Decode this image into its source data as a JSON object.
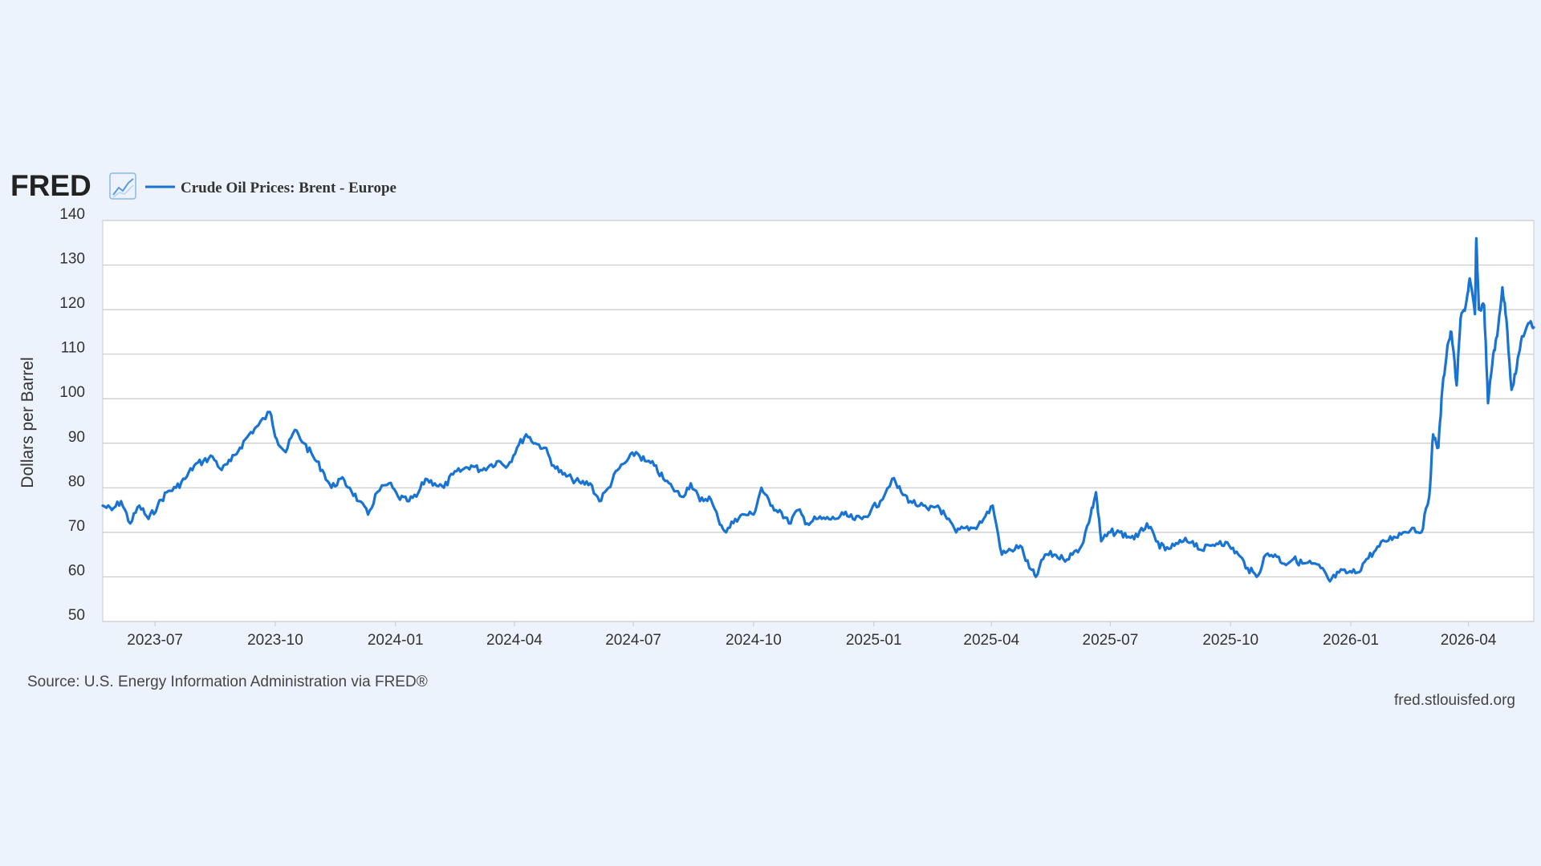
{
  "header": {
    "logo": "FRED",
    "logo_icon": "line-chart-icon"
  },
  "footer": {
    "source": "Source: U.S. Energy Information Administration via FRED®",
    "site": "fred.stlouisfed.org"
  },
  "colors": {
    "background": "#edf3fc",
    "plot_background": "#ffffff",
    "series": "#1873d3",
    "grid": "#c9c9c9",
    "text": "#333333"
  },
  "chart_data": {
    "type": "line",
    "ylabel": "Dollars per Barrel",
    "xlabel": "",
    "ylim": [
      50,
      140
    ],
    "yticks": [
      140,
      130,
      120,
      110,
      100,
      90,
      80,
      70,
      60,
      50
    ],
    "xlim": [
      "2023-05-22",
      "2026-05-21"
    ],
    "xticks": [
      "2023-07",
      "2023-10",
      "2024-01",
      "2024-04",
      "2024-07",
      "2024-10",
      "2025-01",
      "2025-04",
      "2025-07",
      "2025-10",
      "2026-01",
      "2026-04"
    ],
    "grid": true,
    "legend_position": "top-left",
    "series": [
      {
        "name": "Crude Oil Prices: Brent - Europe",
        "color": "#1873d3",
        "points": [
          [
            "2023-05-22",
            76
          ],
          [
            "2023-05-29",
            75
          ],
          [
            "2023-06-05",
            77
          ],
          [
            "2023-06-12",
            72
          ],
          [
            "2023-06-19",
            76
          ],
          [
            "2023-06-26",
            73
          ],
          [
            "2023-07-03",
            76
          ],
          [
            "2023-07-10",
            79
          ],
          [
            "2023-07-17",
            80
          ],
          [
            "2023-07-24",
            82
          ],
          [
            "2023-07-31",
            85
          ],
          [
            "2023-08-07",
            86
          ],
          [
            "2023-08-14",
            87
          ],
          [
            "2023-08-21",
            84
          ],
          [
            "2023-08-28",
            86
          ],
          [
            "2023-09-04",
            89
          ],
          [
            "2023-09-11",
            92
          ],
          [
            "2023-09-18",
            94
          ],
          [
            "2023-09-27",
            97
          ],
          [
            "2023-10-02",
            91
          ],
          [
            "2023-10-09",
            88
          ],
          [
            "2023-10-16",
            93
          ],
          [
            "2023-10-23",
            90
          ],
          [
            "2023-10-30",
            87
          ],
          [
            "2023-11-06",
            84
          ],
          [
            "2023-11-13",
            80
          ],
          [
            "2023-11-20",
            82
          ],
          [
            "2023-11-27",
            80
          ],
          [
            "2023-12-04",
            77
          ],
          [
            "2023-12-11",
            74
          ],
          [
            "2023-12-18",
            79
          ],
          [
            "2023-12-27",
            81
          ],
          [
            "2024-01-03",
            78
          ],
          [
            "2024-01-10",
            77
          ],
          [
            "2024-01-17",
            78
          ],
          [
            "2024-01-24",
            82
          ],
          [
            "2024-01-31",
            81
          ],
          [
            "2024-02-07",
            80
          ],
          [
            "2024-02-14",
            83
          ],
          [
            "2024-02-21",
            84
          ],
          [
            "2024-02-28",
            85
          ],
          [
            "2024-03-06",
            84
          ],
          [
            "2024-03-13",
            85
          ],
          [
            "2024-03-20",
            86
          ],
          [
            "2024-03-27",
            85
          ],
          [
            "2024-04-03",
            89
          ],
          [
            "2024-04-10",
            92
          ],
          [
            "2024-04-17",
            90
          ],
          [
            "2024-04-24",
            89
          ],
          [
            "2024-05-01",
            85
          ],
          [
            "2024-05-08",
            83
          ],
          [
            "2024-05-15",
            82
          ],
          [
            "2024-05-22",
            81
          ],
          [
            "2024-05-29",
            81
          ],
          [
            "2024-06-05",
            77
          ],
          [
            "2024-06-12",
            80
          ],
          [
            "2024-06-19",
            84
          ],
          [
            "2024-06-26",
            86
          ],
          [
            "2024-07-03",
            88
          ],
          [
            "2024-07-10",
            86
          ],
          [
            "2024-07-17",
            85
          ],
          [
            "2024-07-24",
            82
          ],
          [
            "2024-07-31",
            80
          ],
          [
            "2024-08-07",
            78
          ],
          [
            "2024-08-14",
            81
          ],
          [
            "2024-08-21",
            77
          ],
          [
            "2024-08-28",
            78
          ],
          [
            "2024-09-04",
            73
          ],
          [
            "2024-09-10",
            70
          ],
          [
            "2024-09-17",
            73
          ],
          [
            "2024-09-24",
            74
          ],
          [
            "2024-10-01",
            74
          ],
          [
            "2024-10-07",
            80
          ],
          [
            "2024-10-14",
            76
          ],
          [
            "2024-10-21",
            75
          ],
          [
            "2024-10-28",
            72
          ],
          [
            "2024-11-04",
            75
          ],
          [
            "2024-11-11",
            72
          ],
          [
            "2024-11-18",
            73
          ],
          [
            "2024-11-25",
            73
          ],
          [
            "2024-12-02",
            73
          ],
          [
            "2024-12-09",
            74
          ],
          [
            "2024-12-16",
            73
          ],
          [
            "2024-12-23",
            73
          ],
          [
            "2024-12-30",
            75
          ],
          [
            "2025-01-06",
            77
          ],
          [
            "2025-01-15",
            82
          ],
          [
            "2025-01-22",
            79
          ],
          [
            "2025-01-29",
            77
          ],
          [
            "2025-02-05",
            76
          ],
          [
            "2025-02-12",
            75
          ],
          [
            "2025-02-19",
            76
          ],
          [
            "2025-02-26",
            73
          ],
          [
            "2025-03-05",
            70
          ],
          [
            "2025-03-12",
            71
          ],
          [
            "2025-03-19",
            71
          ],
          [
            "2025-03-26",
            73
          ],
          [
            "2025-04-02",
            76
          ],
          [
            "2025-04-09",
            65
          ],
          [
            "2025-04-16",
            66
          ],
          [
            "2025-04-23",
            67
          ],
          [
            "2025-04-30",
            62
          ],
          [
            "2025-05-05",
            60
          ],
          [
            "2025-05-12",
            65
          ],
          [
            "2025-05-19",
            65
          ],
          [
            "2025-05-26",
            64
          ],
          [
            "2025-06-02",
            65
          ],
          [
            "2025-06-09",
            67
          ],
          [
            "2025-06-16",
            74
          ],
          [
            "2025-06-20",
            79
          ],
          [
            "2025-06-24",
            68
          ],
          [
            "2025-07-01",
            70
          ],
          [
            "2025-07-08",
            70
          ],
          [
            "2025-07-15",
            69
          ],
          [
            "2025-07-22",
            69
          ],
          [
            "2025-07-29",
            72
          ],
          [
            "2025-08-05",
            68
          ],
          [
            "2025-08-12",
            66
          ],
          [
            "2025-08-19",
            67
          ],
          [
            "2025-08-26",
            68
          ],
          [
            "2025-09-02",
            68
          ],
          [
            "2025-09-09",
            66
          ],
          [
            "2025-09-16",
            67
          ],
          [
            "2025-09-23",
            68
          ],
          [
            "2025-09-30",
            67
          ],
          [
            "2025-10-07",
            65
          ],
          [
            "2025-10-14",
            62
          ],
          [
            "2025-10-21",
            60
          ],
          [
            "2025-10-28",
            65
          ],
          [
            "2025-11-04",
            65
          ],
          [
            "2025-11-11",
            63
          ],
          [
            "2025-11-18",
            64
          ],
          [
            "2025-11-25",
            63
          ],
          [
            "2025-12-02",
            63
          ],
          [
            "2025-12-09",
            62
          ],
          [
            "2025-12-16",
            59
          ],
          [
            "2025-12-23",
            61
          ],
          [
            "2025-12-30",
            61
          ],
          [
            "2026-01-06",
            61
          ],
          [
            "2026-01-13",
            64
          ],
          [
            "2026-01-20",
            66
          ],
          [
            "2026-01-27",
            68
          ],
          [
            "2026-02-03",
            69
          ],
          [
            "2026-02-10",
            70
          ],
          [
            "2026-02-17",
            71
          ],
          [
            "2026-02-24",
            70
          ],
          [
            "2026-03-02",
            78
          ],
          [
            "2026-03-05",
            92
          ],
          [
            "2026-03-09",
            89
          ],
          [
            "2026-03-12",
            102
          ],
          [
            "2026-03-16",
            112
          ],
          [
            "2026-03-19",
            115
          ],
          [
            "2026-03-23",
            103
          ],
          [
            "2026-03-26",
            118
          ],
          [
            "2026-03-30",
            121
          ],
          [
            "2026-04-02",
            127
          ],
          [
            "2026-04-06",
            119
          ],
          [
            "2026-04-07",
            136
          ],
          [
            "2026-04-09",
            120
          ],
          [
            "2026-04-13",
            121
          ],
          [
            "2026-04-16",
            99
          ],
          [
            "2026-04-20",
            110
          ],
          [
            "2026-04-23",
            114
          ],
          [
            "2026-04-27",
            125
          ],
          [
            "2026-04-30",
            118
          ],
          [
            "2026-05-04",
            102
          ],
          [
            "2026-05-08",
            107
          ],
          [
            "2026-05-12",
            114
          ],
          [
            "2026-05-18",
            117
          ],
          [
            "2026-05-21",
            116
          ]
        ]
      }
    ]
  }
}
